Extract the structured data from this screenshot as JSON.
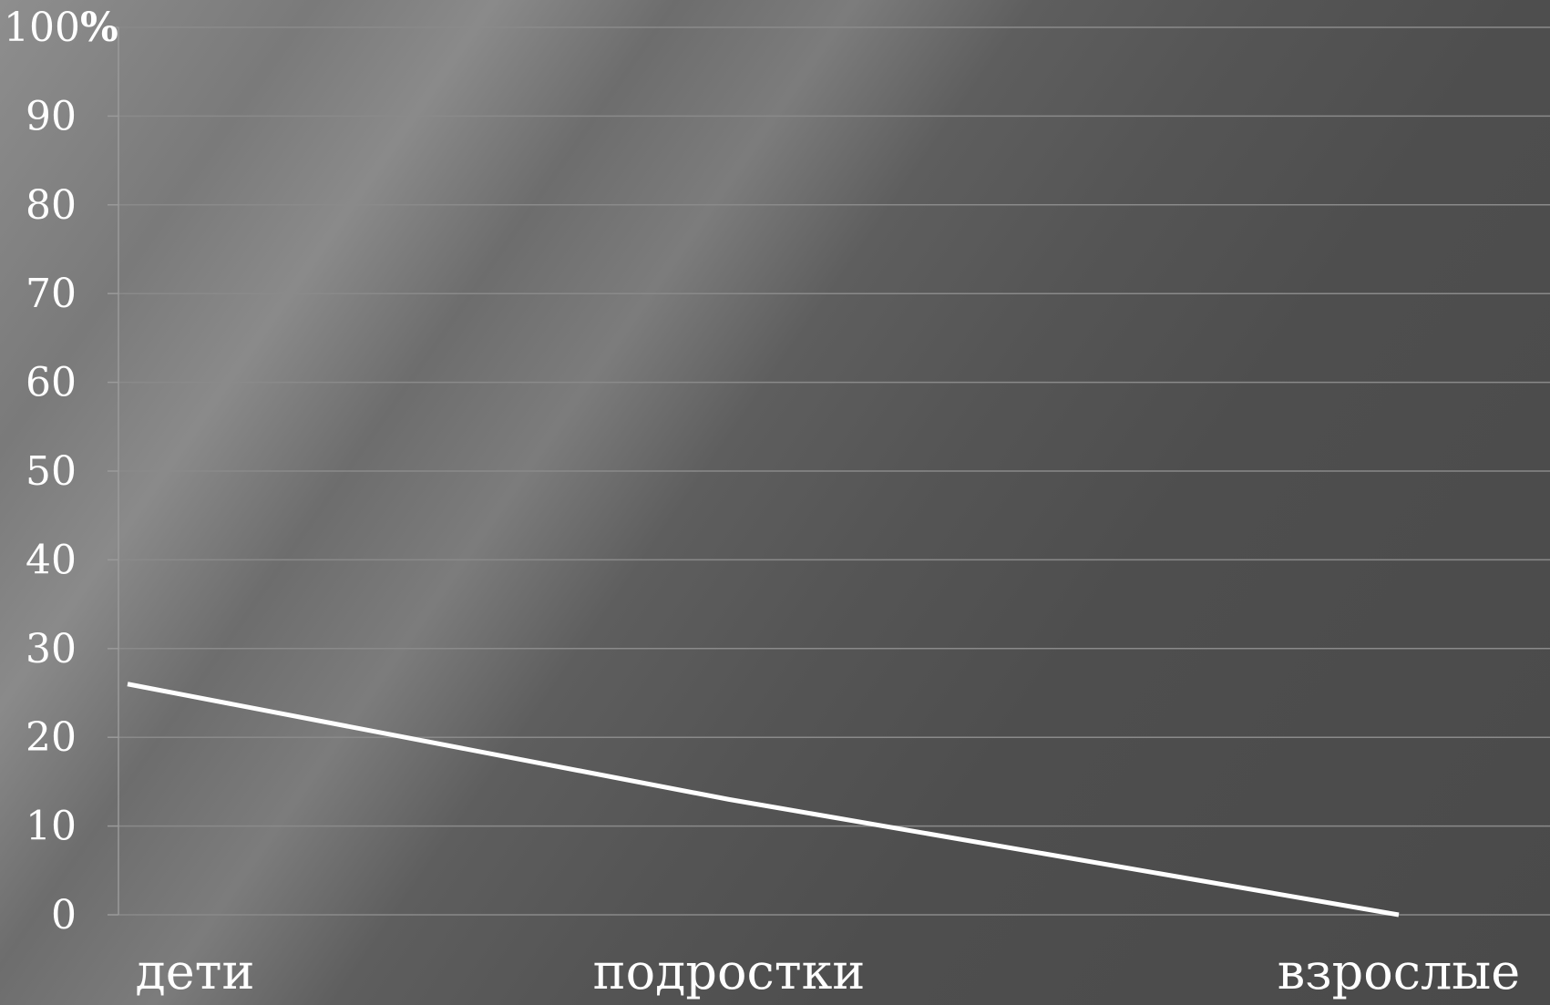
{
  "chart_data": {
    "type": "line",
    "categories": [
      "дети",
      "подростки",
      "взрослые"
    ],
    "series": [
      {
        "values": [
          26,
          13,
          0
        ]
      }
    ],
    "yticks": [
      "0",
      "10",
      "20",
      "30",
      "40",
      "50",
      "60",
      "70",
      "80",
      "90",
      "100"
    ],
    "ylim": [
      0,
      100
    ],
    "yunit": "%",
    "grid": true,
    "colors": {
      "line": "#ffffff",
      "grid": "#8a8a8a",
      "axis": "#9a9a9a",
      "text": "#ffffff"
    }
  }
}
